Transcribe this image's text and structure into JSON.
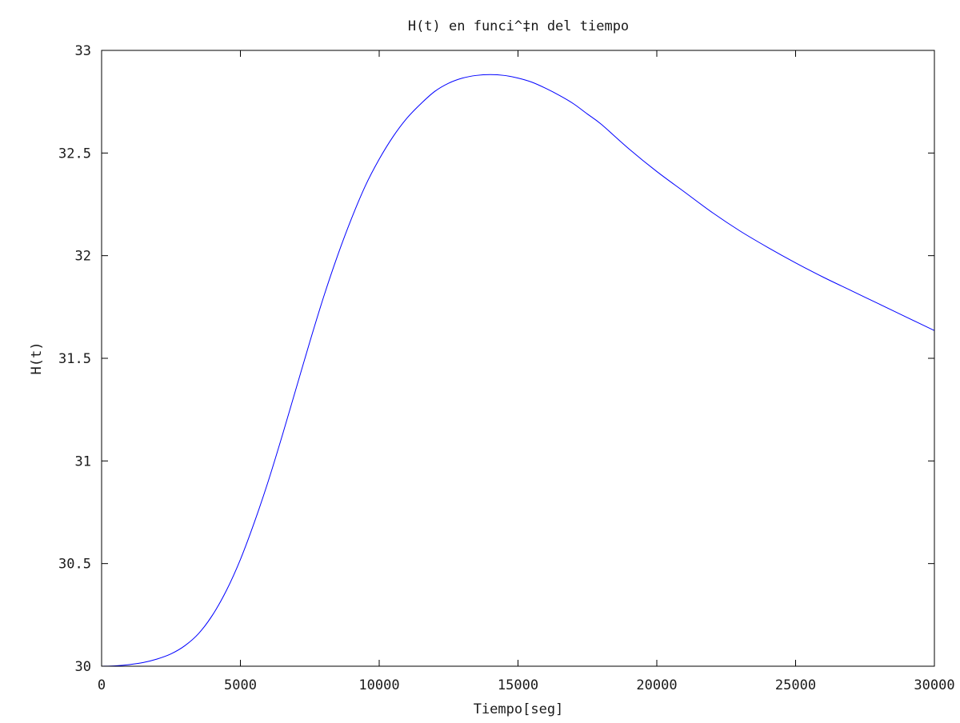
{
  "chart_data": {
    "type": "line",
    "title": "H(t) en funci^‡n del tiempo",
    "xlabel": "Tiempo[seg]",
    "ylabel": "H(t)",
    "xlim": [
      0,
      30000
    ],
    "ylim": [
      30,
      33
    ],
    "grid": false,
    "legend": "none",
    "x_ticks": [
      0,
      5000,
      10000,
      15000,
      20000,
      25000,
      30000
    ],
    "x_tick_labels": [
      "0",
      "5000",
      "10000",
      "15000",
      "20000",
      "25000",
      "30000"
    ],
    "y_ticks": [
      30,
      30.5,
      31,
      31.5,
      32,
      32.5,
      33
    ],
    "y_tick_labels": [
      "30",
      "30.5",
      "31",
      "31.5",
      "32",
      "32.5",
      "33"
    ],
    "series": [
      {
        "color": "#0000ff",
        "x": [
          0,
          500,
          1000,
          1500,
          2000,
          2500,
          3000,
          3500,
          4000,
          4500,
          5000,
          5500,
          6000,
          6500,
          7000,
          7500,
          8000,
          8500,
          9000,
          9500,
          10000,
          10500,
          11000,
          11500,
          12000,
          12500,
          13000,
          13500,
          14000,
          14500,
          15000,
          15500,
          16000,
          16500,
          17000,
          17500,
          18000,
          19000,
          20000,
          21000,
          22000,
          23000,
          24000,
          25000,
          26000,
          27000,
          28000,
          29000,
          30000
        ],
        "y": [
          30.0,
          30.002,
          30.008,
          30.018,
          30.035,
          30.06,
          30.1,
          30.16,
          30.25,
          30.37,
          30.52,
          30.7,
          30.9,
          31.12,
          31.35,
          31.58,
          31.8,
          32.0,
          32.18,
          32.34,
          32.47,
          32.58,
          32.67,
          32.74,
          32.8,
          32.84,
          32.865,
          32.878,
          32.882,
          32.878,
          32.865,
          32.845,
          32.815,
          32.78,
          32.74,
          32.69,
          32.64,
          32.52,
          32.41,
          32.31,
          32.21,
          32.12,
          32.04,
          31.965,
          31.895,
          31.83,
          31.765,
          31.7,
          31.635
        ]
      }
    ]
  }
}
